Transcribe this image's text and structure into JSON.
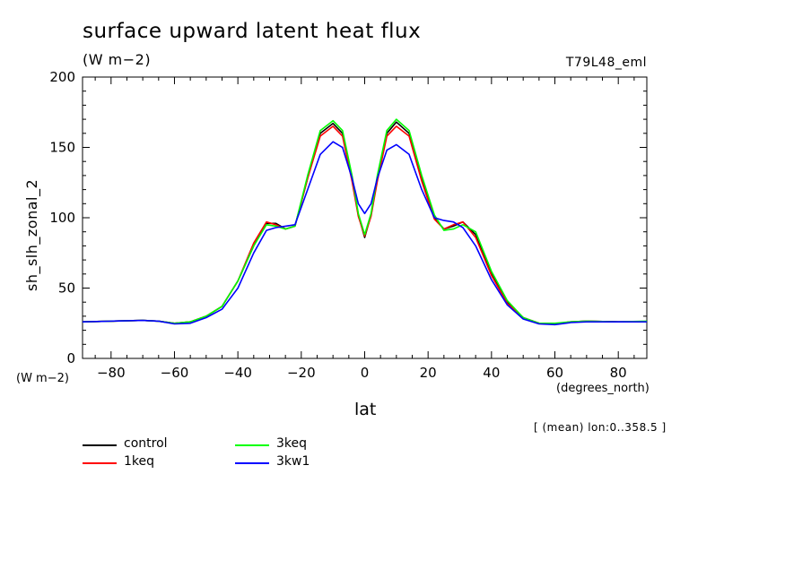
{
  "chart_data": {
    "type": "line",
    "title": "surface upward latent heat flux",
    "units": "(W m−2)",
    "run_label": "T79L48_eml",
    "ylabel": "sh_slh_zonal_2",
    "yunits": "(W m−2)",
    "xlabel": "lat",
    "xunits": "(degrees_north)",
    "note": "[ (mean) lon:0..358.5 ]",
    "xlim": [
      -89,
      89
    ],
    "ylim": [
      0,
      200
    ],
    "xticks": [
      -80,
      -60,
      -40,
      -20,
      0,
      20,
      40,
      60,
      80
    ],
    "xtick_labels": [
      "−80",
      "−60",
      "−40",
      "−20",
      "0",
      "20",
      "40",
      "60",
      "80"
    ],
    "yticks": [
      0,
      50,
      100,
      150,
      200
    ],
    "ytick_labels": [
      "0",
      "50",
      "100",
      "150",
      "200"
    ],
    "x": [
      -89,
      -80,
      -70,
      -65,
      -60,
      -55,
      -50,
      -45,
      -40,
      -35,
      -31,
      -28,
      -25,
      -22,
      -18,
      -14,
      -10,
      -7,
      -4,
      -2,
      0,
      2,
      4,
      7,
      10,
      14,
      18,
      22,
      25,
      28,
      31,
      35,
      40,
      45,
      50,
      55,
      60,
      65,
      70,
      80,
      89
    ],
    "series": [
      {
        "name": "control",
        "color": "#000000",
        "values": [
          26,
          26.5,
          27,
          26.5,
          25,
          26,
          30,
          37,
          55,
          80,
          96,
          96,
          92,
          94,
          128,
          160,
          167,
          160,
          128,
          102,
          86,
          102,
          128,
          160,
          168,
          160,
          128,
          100,
          92,
          94,
          97,
          88,
          60,
          40,
          29,
          25,
          24.5,
          26,
          26.5,
          26,
          26
        ]
      },
      {
        "name": "1keq",
        "color": "#ff0000",
        "values": [
          26,
          26.5,
          27,
          26.5,
          25,
          26,
          30,
          37,
          55,
          82,
          97,
          95,
          92,
          94,
          128,
          158,
          165,
          158,
          126,
          101,
          87,
          101,
          126,
          158,
          165,
          158,
          126,
          99,
          92,
          95,
          97,
          86,
          59,
          39,
          29,
          25,
          24.5,
          26,
          26.5,
          26,
          26
        ]
      },
      {
        "name": "3keq",
        "color": "#00ff00",
        "values": [
          26,
          26.5,
          27,
          26.5,
          25,
          26,
          30,
          37,
          55,
          80,
          95,
          94,
          92,
          94,
          130,
          162,
          169,
          162,
          130,
          103,
          88,
          103,
          130,
          162,
          170,
          162,
          130,
          102,
          91,
          92,
          95,
          90,
          62,
          41,
          29,
          25,
          25,
          26,
          26.5,
          26,
          26.5
        ]
      },
      {
        "name": "3kw1",
        "color": "#0000ff",
        "values": [
          26,
          26.5,
          27,
          26.5,
          24.5,
          25,
          29,
          35,
          50,
          75,
          91,
          93,
          94,
          95,
          120,
          145,
          154,
          150,
          128,
          110,
          103,
          110,
          128,
          148,
          152,
          145,
          120,
          100,
          98,
          97,
          93,
          80,
          56,
          38,
          28,
          24.5,
          24,
          25.5,
          26,
          26,
          26
        ]
      }
    ],
    "grid": false,
    "legend_position": "bottom-left"
  }
}
